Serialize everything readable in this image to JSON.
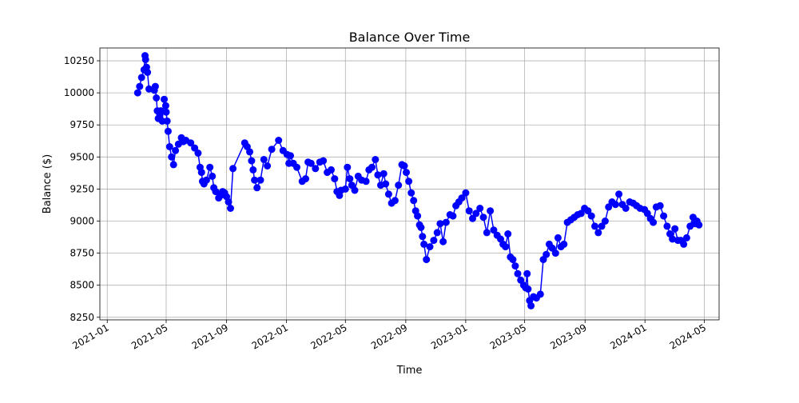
{
  "chart_data": {
    "type": "line",
    "title": "Balance Over Time",
    "xlabel": "Time",
    "ylabel": "Balance ($)",
    "grid": true,
    "legend": "none",
    "xlim": [
      "2020-12-17",
      "2024-05-31"
    ],
    "ylim": [
      8230,
      10350
    ],
    "x_ticks": [
      "2021-01",
      "2021-05",
      "2021-09",
      "2022-01",
      "2022-05",
      "2022-09",
      "2023-01",
      "2023-05",
      "2023-09",
      "2024-01",
      "2024-05"
    ],
    "y_ticks": [
      8250,
      8500,
      8750,
      9000,
      9250,
      9500,
      9750,
      10000,
      10250
    ],
    "colors": {
      "series": "#0000ff",
      "grid": "#b0b0b0"
    },
    "series": [
      {
        "marker": "circle",
        "x": [
          "2021-03-04",
          "2021-03-08",
          "2021-03-12",
          "2021-03-17",
          "2021-03-19",
          "2021-03-20",
          "2021-03-22",
          "2021-03-24",
          "2021-03-27",
          "2021-04-07",
          "2021-04-09",
          "2021-04-11",
          "2021-04-13",
          "2021-04-15",
          "2021-04-18",
          "2021-04-20",
          "2021-04-23",
          "2021-04-27",
          "2021-04-30",
          "2021-05-01",
          "2021-05-03",
          "2021-05-05",
          "2021-05-08",
          "2021-05-12",
          "2021-05-16",
          "2021-05-20",
          "2021-05-26",
          "2021-06-01",
          "2021-06-05",
          "2021-06-10",
          "2021-06-20",
          "2021-06-28",
          "2021-07-05",
          "2021-07-09",
          "2021-07-12",
          "2021-07-14",
          "2021-07-17",
          "2021-07-22",
          "2021-07-29",
          "2021-08-03",
          "2021-08-06",
          "2021-08-10",
          "2021-08-16",
          "2021-08-20",
          "2021-08-24",
          "2021-08-28",
          "2021-09-01",
          "2021-09-05",
          "2021-09-09",
          "2021-09-14",
          "2021-10-08",
          "2021-10-13",
          "2021-10-18",
          "2021-10-22",
          "2021-10-25",
          "2021-10-28",
          "2021-11-02",
          "2021-11-09",
          "2021-11-16",
          "2021-11-23",
          "2021-12-02",
          "2021-12-16",
          "2021-12-25",
          "2022-01-02",
          "2022-01-06",
          "2022-01-09",
          "2022-01-15",
          "2022-01-22",
          "2022-02-02",
          "2022-02-09",
          "2022-02-14",
          "2022-02-20",
          "2022-03-01",
          "2022-03-10",
          "2022-03-17",
          "2022-03-25",
          "2022-04-02",
          "2022-04-09",
          "2022-04-14",
          "2022-04-19",
          "2022-04-22",
          "2022-05-01",
          "2022-05-05",
          "2022-05-10",
          "2022-05-14",
          "2022-05-20",
          "2022-05-27",
          "2022-06-03",
          "2022-06-12",
          "2022-06-18",
          "2022-06-24",
          "2022-07-01",
          "2022-07-06",
          "2022-07-12",
          "2022-07-18",
          "2022-07-22",
          "2022-07-28",
          "2022-08-03",
          "2022-08-10",
          "2022-08-17",
          "2022-08-24",
          "2022-08-29",
          "2022-09-02",
          "2022-09-07",
          "2022-09-12",
          "2022-09-17",
          "2022-09-21",
          "2022-09-25",
          "2022-09-29",
          "2022-10-02",
          "2022-10-05",
          "2022-10-08",
          "2022-10-13",
          "2022-10-20",
          "2022-10-28",
          "2022-11-04",
          "2022-11-10",
          "2022-11-16",
          "2022-11-22",
          "2022-11-30",
          "2022-12-06",
          "2022-12-12",
          "2022-12-18",
          "2022-12-24",
          "2023-01-01",
          "2023-01-08",
          "2023-01-15",
          "2023-01-22",
          "2023-01-30",
          "2023-02-06",
          "2023-02-13",
          "2023-02-20",
          "2023-02-27",
          "2023-03-06",
          "2023-03-13",
          "2023-03-18",
          "2023-03-23",
          "2023-03-28",
          "2023-04-02",
          "2023-04-07",
          "2023-04-12",
          "2023-04-17",
          "2023-04-23",
          "2023-04-29",
          "2023-05-03",
          "2023-05-06",
          "2023-05-08",
          "2023-05-11",
          "2023-05-14",
          "2023-05-19",
          "2023-05-25",
          "2023-06-02",
          "2023-06-08",
          "2023-06-14",
          "2023-06-20",
          "2023-06-26",
          "2023-07-03",
          "2023-07-08",
          "2023-07-14",
          "2023-07-20",
          "2023-07-27",
          "2023-08-03",
          "2023-08-10",
          "2023-08-17",
          "2023-08-24",
          "2023-08-31",
          "2023-09-07",
          "2023-09-14",
          "2023-09-21",
          "2023-09-28",
          "2023-10-05",
          "2023-10-12",
          "2023-10-19",
          "2023-10-26",
          "2023-11-02",
          "2023-11-09",
          "2023-11-16",
          "2023-11-23",
          "2023-12-01",
          "2023-12-08",
          "2023-12-15",
          "2023-12-22",
          "2023-12-31",
          "2024-01-06",
          "2024-01-12",
          "2024-01-18",
          "2024-01-24",
          "2024-02-01",
          "2024-02-08",
          "2024-02-15",
          "2024-02-21",
          "2024-02-26",
          "2024-03-02",
          "2024-03-08",
          "2024-03-14",
          "2024-03-20",
          "2024-03-26",
          "2024-04-02",
          "2024-04-08",
          "2024-04-12",
          "2024-04-16",
          "2024-04-20"
        ],
        "y": [
          10000,
          10050,
          10120,
          10180,
          10290,
          10260,
          10200,
          10160,
          10030,
          10020,
          10050,
          9960,
          9860,
          9800,
          9830,
          9860,
          9780,
          9950,
          9900,
          9850,
          9780,
          9700,
          9580,
          9500,
          9440,
          9550,
          9600,
          9650,
          9620,
          9630,
          9610,
          9570,
          9530,
          9420,
          9380,
          9310,
          9290,
          9320,
          9420,
          9350,
          9260,
          9230,
          9180,
          9200,
          9230,
          9220,
          9190,
          9150,
          9100,
          9410,
          9610,
          9580,
          9540,
          9470,
          9400,
          9320,
          9260,
          9320,
          9480,
          9430,
          9560,
          9630,
          9550,
          9520,
          9450,
          9510,
          9450,
          9420,
          9310,
          9330,
          9460,
          9450,
          9410,
          9460,
          9470,
          9380,
          9400,
          9330,
          9230,
          9200,
          9240,
          9250,
          9420,
          9330,
          9280,
          9240,
          9350,
          9320,
          9310,
          9400,
          9420,
          9480,
          9360,
          9280,
          9370,
          9290,
          9210,
          9140,
          9160,
          9280,
          9440,
          9430,
          9380,
          9310,
          9220,
          9160,
          9080,
          9040,
          8970,
          8950,
          8880,
          8820,
          8700,
          8800,
          8850,
          8910,
          8980,
          8840,
          8990,
          9050,
          9040,
          9120,
          9150,
          9180,
          9220,
          9080,
          9020,
          9060,
          9100,
          9030,
          8910,
          9080,
          8930,
          8890,
          8860,
          8820,
          8800,
          8900,
          8720,
          8700,
          8650,
          8590,
          8540,
          8500,
          8480,
          8590,
          8470,
          8380,
          8340,
          8410,
          8400,
          8430,
          8700,
          8740,
          8820,
          8790,
          8750,
          8870,
          8800,
          8820,
          8990,
          9010,
          9030,
          9050,
          9060,
          9100,
          9080,
          9040,
          8960,
          8910,
          8960,
          9000,
          9110,
          9150,
          9130,
          9210,
          9130,
          9100,
          9150,
          9140,
          9120,
          9100,
          9090,
          9060,
          9020,
          8990,
          9110,
          9120,
          9040,
          8960,
          8900,
          8860,
          8940,
          8850,
          8850,
          8820,
          8870,
          8960,
          9030,
          8980,
          9000,
          8970
        ]
      }
    ]
  }
}
